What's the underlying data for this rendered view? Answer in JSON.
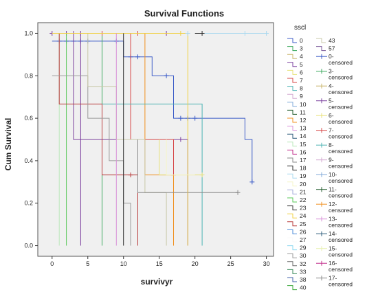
{
  "chart_data": {
    "type": "line",
    "title": "Survival Functions",
    "xlabel": "survivyr",
    "ylabel": "Cum Survival",
    "xlim": [
      -2,
      31
    ],
    "ylim": [
      -0.05,
      1.05
    ],
    "x_ticks": [
      "0",
      "5",
      "10",
      "15",
      "20",
      "25",
      "30"
    ],
    "y_ticks": [
      "0.0",
      "0.2",
      "0.4",
      "0.6",
      "0.8",
      "1.0"
    ],
    "grid": false,
    "background": "#f0f0f0",
    "legend": {
      "title": "sscl",
      "placement": "right",
      "col1": [
        {
          "label": "0",
          "color": "#3b5bc7",
          "marker": false
        },
        {
          "label": "3",
          "color": "#39a85b",
          "marker": false
        },
        {
          "label": "4",
          "color": "#c8b46a",
          "marker": false
        },
        {
          "label": "5",
          "color": "#7a3e9d",
          "marker": false
        },
        {
          "label": "6",
          "color": "#e8e27a",
          "marker": false
        },
        {
          "label": "7",
          "color": "#d64545",
          "marker": false
        },
        {
          "label": "8",
          "color": "#4bb3b3",
          "marker": false
        },
        {
          "label": "9",
          "color": "#d3a8d0",
          "marker": false
        },
        {
          "label": "10",
          "color": "#7fa8d8",
          "marker": false
        },
        {
          "label": "11",
          "color": "#1f5a2a",
          "marker": false
        },
        {
          "label": "12",
          "color": "#f09020",
          "marker": false
        },
        {
          "label": "13",
          "color": "#d890d8",
          "marker": false
        },
        {
          "label": "14",
          "color": "#2a5a7a",
          "marker": false
        },
        {
          "label": "15",
          "color": "#b9e8b9",
          "marker": false
        },
        {
          "label": "16",
          "color": "#c02a8a",
          "marker": false
        },
        {
          "label": "17",
          "color": "#8a8a8a",
          "marker": false
        },
        {
          "label": "18",
          "color": "#2a2a2a",
          "marker": false
        },
        {
          "label": "19",
          "color": "#a8d8ef",
          "marker": false
        },
        {
          "label": "20",
          "color": "#f5f5c8",
          "marker": false
        },
        {
          "label": "21",
          "color": "#a0a8d8",
          "marker": false
        },
        {
          "label": "22",
          "color": "#5ac85a",
          "marker": false
        },
        {
          "label": "23",
          "color": "#3a3a3a",
          "marker": false
        },
        {
          "label": "24",
          "color": "#f0d040",
          "marker": false
        },
        {
          "label": "25",
          "color": "#b83a3a",
          "marker": false
        },
        {
          "label": "26",
          "color": "#4a8ad8",
          "marker": false
        },
        {
          "label": "27",
          "color": "#f8f8f8",
          "marker": false
        },
        {
          "label": "29",
          "color": "#8ad8f0",
          "marker": false
        },
        {
          "label": "30",
          "color": "#9a9a9a",
          "marker": false
        },
        {
          "label": "32",
          "color": "#6a6a6a",
          "marker": false
        },
        {
          "label": "33",
          "color": "#3a8a5a",
          "marker": false
        },
        {
          "label": "38",
          "color": "#4060a8",
          "marker": false
        },
        {
          "label": "40",
          "color": "#3aa83a",
          "marker": false
        }
      ],
      "col2": [
        {
          "label": "43",
          "color": "#c8c8a8",
          "marker": false
        },
        {
          "label": "57",
          "color": "#7a5a9a",
          "marker": false
        },
        {
          "label": "0-\ncensored",
          "color": "#3b5bc7",
          "marker": true
        },
        {
          "label": "3-\ncensored",
          "color": "#39a85b",
          "marker": true
        },
        {
          "label": "4-\ncensored",
          "color": "#c8b46a",
          "marker": true
        },
        {
          "label": "5-\ncensored",
          "color": "#7a3e9d",
          "marker": true
        },
        {
          "label": "6-\ncensored",
          "color": "#e8e27a",
          "marker": true
        },
        {
          "label": "7-\ncensored",
          "color": "#d64545",
          "marker": true
        },
        {
          "label": "8-\ncensored",
          "color": "#4bb3b3",
          "marker": true
        },
        {
          "label": "9-\ncensored",
          "color": "#d3a8d0",
          "marker": true
        },
        {
          "label": "10-\ncensored",
          "color": "#7fa8d8",
          "marker": true
        },
        {
          "label": "11-\ncensored",
          "color": "#1f5a2a",
          "marker": true
        },
        {
          "label": "12-\ncensored",
          "color": "#f09020",
          "marker": true
        },
        {
          "label": "13-\ncensored",
          "color": "#d890d8",
          "marker": true
        },
        {
          "label": "14-\ncensored",
          "color": "#2a5a7a",
          "marker": true
        },
        {
          "label": "15-\ncensored",
          "color": "#e8f0b0",
          "marker": true
        },
        {
          "label": "16-\ncensored",
          "color": "#c02a8a",
          "marker": true
        },
        {
          "label": "17-\ncensored",
          "color": "#8a8a8a",
          "marker": true
        },
        {
          "label": "...",
          "color": "#222222",
          "marker": false
        }
      ]
    },
    "series": [
      {
        "color": "#3b5bc7",
        "steps": [
          [
            0,
            0.963
          ],
          [
            10,
            0.963
          ],
          [
            10,
            0.889
          ],
          [
            14,
            0.889
          ],
          [
            14,
            0.8
          ],
          [
            17,
            0.8
          ],
          [
            17,
            0.6
          ],
          [
            27,
            0.6
          ],
          [
            27,
            0.5
          ],
          [
            28,
            0.5
          ],
          [
            28,
            0.3
          ]
        ],
        "censored": [
          [
            1,
            0.963
          ],
          [
            2,
            0.963
          ],
          [
            3,
            0.963
          ],
          [
            4,
            0.963
          ],
          [
            5,
            0.963
          ],
          [
            9,
            0.963
          ],
          [
            11,
            0.889
          ],
          [
            12,
            0.889
          ],
          [
            16,
            0.8
          ],
          [
            18,
            0.6
          ],
          [
            19,
            0.6
          ],
          [
            20,
            0.6
          ],
          [
            28,
            0.3
          ]
        ]
      },
      {
        "color": "#7a3e9d",
        "steps": [
          [
            0,
            1.0
          ],
          [
            3,
            1.0
          ],
          [
            3,
            0.5
          ],
          [
            19,
            0.5
          ],
          [
            19,
            0.0
          ]
        ],
        "censored": [
          [
            0,
            1.0
          ],
          [
            2,
            1.0
          ],
          [
            3,
            1.0
          ],
          [
            4,
            1.0
          ],
          [
            16,
            1.0
          ],
          [
            18,
            0.5
          ]
        ]
      },
      {
        "color": "#7a3e9d",
        "steps": [
          [
            4,
            1.0
          ],
          [
            4,
            0.0
          ]
        ],
        "censored": []
      },
      {
        "color": "#39a85b",
        "steps": [
          [
            7,
            1.0
          ],
          [
            7,
            0.0
          ]
        ],
        "censored": []
      },
      {
        "color": "#5ac85a",
        "steps": [
          [
            2,
            1.0
          ],
          [
            2,
            0.0
          ]
        ],
        "censored": []
      },
      {
        "color": "#b9e8b9",
        "steps": [
          [
            1,
            1.0
          ],
          [
            1,
            0.0
          ]
        ],
        "censored": []
      },
      {
        "color": "#b83a3a",
        "steps": [
          [
            1,
            1.0
          ],
          [
            1,
            0.667
          ],
          [
            7,
            0.667
          ],
          [
            7,
            0.333
          ],
          [
            12,
            0.333
          ],
          [
            12,
            0.0
          ]
        ],
        "censored": [
          [
            11,
            0.333
          ]
        ]
      },
      {
        "color": "#d64545",
        "steps": [
          [
            11,
            1.0
          ],
          [
            11,
            0.5
          ],
          [
            17,
            0.5
          ],
          [
            17,
            0.333
          ]
        ],
        "censored": [
          [
            7,
            1.0
          ],
          [
            12,
            1.0
          ],
          [
            17,
            0.333
          ]
        ]
      },
      {
        "color": "#f09020",
        "steps": [
          [
            13,
            1.0
          ],
          [
            13,
            0.333
          ],
          [
            17,
            0.333
          ],
          [
            17,
            0.0
          ]
        ],
        "censored": []
      },
      {
        "color": "#4bb3b3",
        "steps": [
          [
            7,
            0.667
          ],
          [
            21,
            0.667
          ],
          [
            21,
            0.0
          ]
        ],
        "censored": []
      },
      {
        "color": "#9a9a9a",
        "steps": [
          [
            0,
            0.8
          ],
          [
            5,
            0.8
          ],
          [
            5,
            0.6
          ],
          [
            8,
            0.6
          ],
          [
            8,
            0.4
          ],
          [
            10,
            0.4
          ],
          [
            10,
            0.2
          ],
          [
            11,
            0.2
          ],
          [
            11,
            0.0
          ]
        ],
        "censored": []
      },
      {
        "color": "#c8c8a8",
        "steps": [
          [
            0,
            1.0
          ],
          [
            5,
            1.0
          ],
          [
            5,
            0.75
          ],
          [
            9,
            0.75
          ],
          [
            9,
            0.5
          ],
          [
            13,
            0.5
          ],
          [
            13,
            0.25
          ],
          [
            16,
            0.25
          ],
          [
            16,
            0.0
          ]
        ],
        "censored": []
      },
      {
        "color": "#8a8a8a",
        "steps": [
          [
            12,
            0.5
          ],
          [
            12,
            0.25
          ],
          [
            26,
            0.25
          ]
        ],
        "censored": [
          [
            26,
            0.25
          ]
        ]
      },
      {
        "color": "#e8e27a",
        "steps": [
          [
            15,
            0.5
          ],
          [
            15,
            0.333
          ],
          [
            21,
            0.333
          ]
        ],
        "censored": [
          [
            21,
            0.333
          ]
        ]
      },
      {
        "color": "#f0d040",
        "steps": [
          [
            0,
            1.0
          ],
          [
            19,
            1.0
          ],
          [
            19,
            0.0
          ]
        ],
        "censored": [
          [
            18,
            1.0
          ]
        ]
      },
      {
        "color": "#a8d8ef",
        "steps": [
          [
            20,
            1.0
          ],
          [
            30,
            1.0
          ]
        ],
        "censored": [
          [
            19,
            1.0
          ],
          [
            27,
            1.0
          ],
          [
            30,
            1.0
          ]
        ]
      },
      {
        "color": "#2a2a2a",
        "steps": [
          [
            20,
            1.0
          ],
          [
            21,
            1.0
          ]
        ],
        "censored": [
          [
            21,
            1.0
          ]
        ]
      },
      {
        "color": "#d890d8",
        "steps": [
          [
            9,
            1.0
          ],
          [
            9,
            0.0
          ]
        ],
        "censored": []
      },
      {
        "color": "#f5f5c8",
        "steps": [
          [
            16,
            0.5
          ],
          [
            16,
            0.333
          ],
          [
            20,
            0.333
          ]
        ],
        "censored": []
      },
      {
        "color": "#2a2a2a",
        "steps": [
          [
            10,
            1.0
          ],
          [
            10,
            0.0
          ]
        ],
        "censored": []
      }
    ]
  }
}
